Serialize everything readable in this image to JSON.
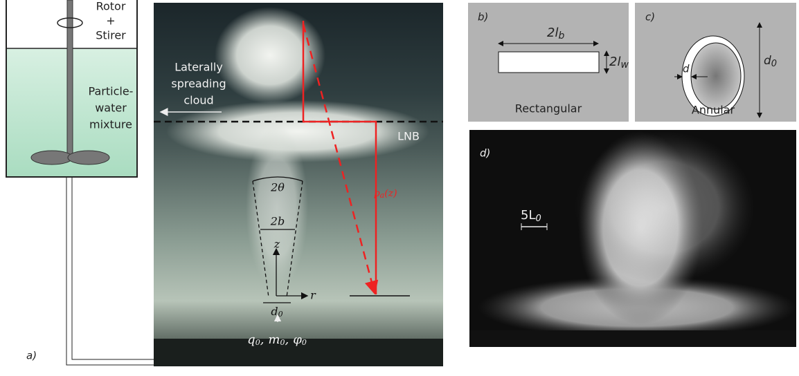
{
  "panel_a": {
    "label": "a)",
    "rotor": [
      "Rotor",
      "+",
      "Stirer"
    ],
    "mixture": [
      "Particle-",
      "water",
      "mixture"
    ],
    "cloud": [
      "Laterally",
      "spreading",
      "cloud"
    ],
    "lnb": "LNB",
    "density": {
      "main": "ρ",
      "sub": "a",
      "tail": "(z)"
    },
    "angle": "2θ",
    "width": "2b",
    "z": "z",
    "r": "r",
    "source_diameter": {
      "main": "d",
      "sub": "0"
    },
    "source_fluxes": [
      {
        "main": "q",
        "sub": "0",
        "separator": ","
      },
      {
        "main": "m",
        "sub": "0",
        "separator": ","
      },
      {
        "main": "φ",
        "sub": "0"
      }
    ]
  },
  "panel_b": {
    "label": "b)",
    "length": {
      "main": "2l",
      "sub": "b"
    },
    "thickness": {
      "main": "2l",
      "sub": "w"
    },
    "caption": "Rectangular"
  },
  "panel_c": {
    "label": "c)",
    "gap": "d",
    "diameter": {
      "main": "d",
      "sub": "0"
    },
    "caption": "Annular"
  },
  "panel_d": {
    "label": "d)",
    "scale": {
      "main": "5L",
      "sub": "0"
    }
  }
}
